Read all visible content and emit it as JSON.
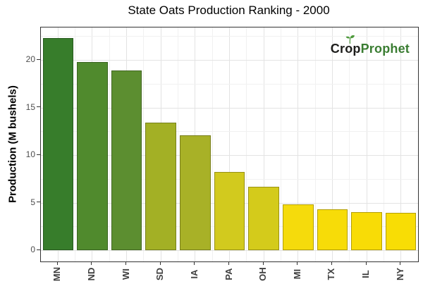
{
  "title": "State Oats Production Ranking - 2000",
  "logo": {
    "part1": "Crop",
    "part2": "Prophet",
    "part1_color": "#1d1d1b",
    "part2_color": "#3a7d32",
    "sprout_color": "#4e9a3c"
  },
  "chart_data": {
    "type": "bar",
    "title": "State Oats Production Ranking - 2000",
    "xlabel": "",
    "ylabel": "Production (M bushels)",
    "categories": [
      "MN",
      "ND",
      "WI",
      "SD",
      "IA",
      "PA",
      "OH",
      "MI",
      "TX",
      "IL",
      "NY"
    ],
    "values": [
      22.3,
      19.8,
      18.9,
      13.4,
      12.1,
      8.2,
      6.7,
      4.8,
      4.3,
      4.0,
      3.9
    ],
    "bar_colors": [
      "#377D2B",
      "#508A2D",
      "#5C8E30",
      "#A3B025",
      "#A8B127",
      "#D2CA1E",
      "#D4CB1B",
      "#F5DB0C",
      "#F7DC08",
      "#F8DC06",
      "#F8DD05"
    ],
    "yticks": [
      0,
      5,
      10,
      15,
      20
    ],
    "yticks_minor": [
      2.5,
      7.5,
      12.5,
      17.5,
      22.5
    ],
    "ylim": [
      0,
      23.4
    ],
    "grid": true,
    "legend": false,
    "panel_border_color": "#333333",
    "major_grid_color": "#e3e3e3",
    "minor_grid_color": "#f1f1f1"
  }
}
